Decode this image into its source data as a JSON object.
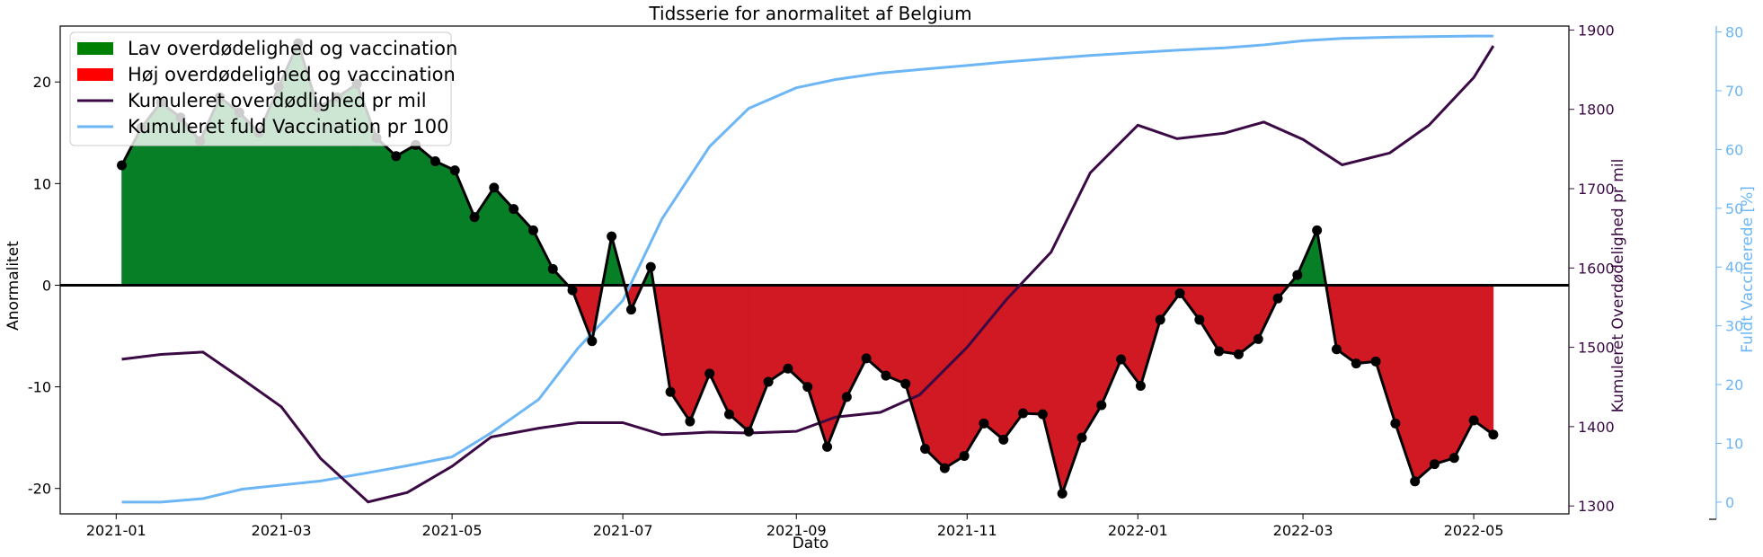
{
  "chart_data": {
    "type": "line",
    "title": "Tidsserie for anormalitet af Belgium",
    "xlabel": "Dato",
    "ylabel": "Anormalitet",
    "y2label": "Kumuleret Overdødelighed pr mil",
    "y3label": "Fuldt Vaccinerede [%]",
    "ylim": [
      -22.5,
      25.5
    ],
    "y2lim": [
      1290,
      1905
    ],
    "y3lim": [
      -2,
      81
    ],
    "x_tick_labels": [
      "2021-01",
      "2021-03",
      "2021-05",
      "2021-07",
      "2021-09",
      "2021-11",
      "2022-01",
      "2022-03",
      "2022-05"
    ],
    "y_ticks": [
      -20,
      -10,
      0,
      10,
      20
    ],
    "y2_ticks": [
      1300,
      1400,
      1500,
      1600,
      1700,
      1800,
      1900
    ],
    "y3_ticks": [
      0,
      10,
      20,
      30,
      40,
      50,
      60,
      70,
      80
    ],
    "legend_position": "top-left",
    "legend": [
      {
        "label": "Lav overdødelighed og vaccination",
        "type": "patch",
        "color": "#008000"
      },
      {
        "label": "Høj overdødelighed og vaccination",
        "type": "patch",
        "color": "#ff0000"
      },
      {
        "label": "Kumuleret overdødlighed pr mil",
        "type": "line",
        "color": "#3b0a45"
      },
      {
        "label": "Kumuleret fuld Vaccination pr 100",
        "type": "line",
        "color": "#6db6f5"
      }
    ],
    "colors": {
      "positive_fill": "#077f26",
      "negative_fill": "#d11923",
      "anomaly_line": "#000000",
      "mortality_line": "#3b0a45",
      "vaccination_line": "#6db6f5",
      "zero_line": "#000000"
    },
    "series": [
      {
        "name": "Anormalitet",
        "axis": "left",
        "x": [
          "2021-01-03",
          "2021-01-10",
          "2021-01-17",
          "2021-01-24",
          "2021-01-31",
          "2021-02-07",
          "2021-02-14",
          "2021-02-21",
          "2021-02-28",
          "2021-03-07",
          "2021-03-14",
          "2021-03-21",
          "2021-03-28",
          "2021-04-04",
          "2021-04-11",
          "2021-04-18",
          "2021-04-25",
          "2021-05-02",
          "2021-05-09",
          "2021-05-16",
          "2021-05-23",
          "2021-05-30",
          "2021-06-06",
          "2021-06-13",
          "2021-06-20",
          "2021-06-27",
          "2021-07-04",
          "2021-07-11",
          "2021-07-18",
          "2021-07-25",
          "2021-08-01",
          "2021-08-08",
          "2021-08-15",
          "2021-08-22",
          "2021-08-29",
          "2021-09-05",
          "2021-09-12",
          "2021-09-19",
          "2021-09-26",
          "2021-10-03",
          "2021-10-10",
          "2021-10-17",
          "2021-10-24",
          "2021-10-31",
          "2021-11-07",
          "2021-11-14",
          "2021-11-21",
          "2021-11-28",
          "2021-12-05",
          "2021-12-12",
          "2021-12-19",
          "2021-12-26",
          "2022-01-02",
          "2022-01-09",
          "2022-01-16",
          "2022-01-23",
          "2022-01-30",
          "2022-02-06",
          "2022-02-13",
          "2022-02-20",
          "2022-02-27",
          "2022-03-06",
          "2022-03-13",
          "2022-03-20",
          "2022-03-27",
          "2022-04-03",
          "2022-04-10",
          "2022-04-17",
          "2022-04-24",
          "2022-05-01",
          "2022-05-08"
        ],
        "values": [
          11.8,
          15.5,
          18.0,
          16.5,
          14.2,
          18.5,
          17.0,
          15.0,
          19.5,
          23.8,
          17.5,
          18.5,
          19.8,
          14.5,
          12.7,
          13.8,
          12.2,
          11.3,
          6.7,
          9.6,
          7.5,
          5.4,
          1.6,
          -0.5,
          -5.5,
          4.8,
          -2.4,
          1.8,
          -10.5,
          -13.4,
          -8.7,
          -12.7,
          -14.4,
          -9.5,
          -8.2,
          -10.0,
          -15.9,
          -11.0,
          -7.2,
          -8.9,
          -9.7,
          -16.1,
          -18.0,
          -16.8,
          -13.6,
          -15.2,
          -12.6,
          -12.7,
          -20.5,
          -15.0,
          -11.8,
          -7.3,
          -9.9,
          -3.4,
          -0.8,
          -3.4,
          -6.5,
          -6.8,
          -5.3,
          -1.3,
          1.0,
          5.4,
          -6.3,
          -7.7,
          -7.5,
          -13.6,
          -19.3,
          -17.6,
          -17.0,
          -13.3,
          -14.7
        ]
      },
      {
        "name": "Kumuleret overdødlighed pr mil",
        "axis": "right",
        "x": [
          "2021-01-03",
          "2021-01-17",
          "2021-02-01",
          "2021-02-15",
          "2021-03-01",
          "2021-03-15",
          "2021-04-01",
          "2021-04-15",
          "2021-05-01",
          "2021-05-15",
          "2021-06-01",
          "2021-06-15",
          "2021-07-01",
          "2021-07-15",
          "2021-08-01",
          "2021-08-15",
          "2021-09-01",
          "2021-09-15",
          "2021-10-01",
          "2021-10-15",
          "2021-11-01",
          "2021-11-15",
          "2021-12-01",
          "2021-12-15",
          "2022-01-01",
          "2022-01-15",
          "2022-02-01",
          "2022-02-15",
          "2022-03-01",
          "2022-03-15",
          "2022-04-01",
          "2022-04-15",
          "2022-05-01",
          "2022-05-08"
        ],
        "values": [
          1485,
          1491,
          1494,
          1460,
          1425,
          1360,
          1305,
          1317,
          1350,
          1387,
          1398,
          1405,
          1405,
          1390,
          1393,
          1392,
          1394,
          1412,
          1418,
          1440,
          1500,
          1560,
          1620,
          1720,
          1780,
          1763,
          1770,
          1784,
          1762,
          1730,
          1745,
          1780,
          1840,
          1880
        ]
      },
      {
        "name": "Kumuleret fuld Vaccination pr 100",
        "axis": "right2",
        "x": [
          "2021-01-03",
          "2021-01-17",
          "2021-02-01",
          "2021-02-15",
          "2021-03-01",
          "2021-03-15",
          "2021-04-01",
          "2021-04-15",
          "2021-05-01",
          "2021-05-15",
          "2021-06-01",
          "2021-06-15",
          "2021-07-01",
          "2021-07-15",
          "2021-08-01",
          "2021-08-15",
          "2021-09-01",
          "2021-09-15",
          "2021-10-01",
          "2021-10-15",
          "2021-11-01",
          "2021-11-15",
          "2021-12-01",
          "2021-12-15",
          "2022-01-01",
          "2022-01-15",
          "2022-02-01",
          "2022-02-15",
          "2022-03-01",
          "2022-03-15",
          "2022-04-01",
          "2022-04-15",
          "2022-05-01",
          "2022-05-08"
        ],
        "values": [
          0.0,
          0.0,
          0.6,
          2.2,
          2.9,
          3.6,
          5.0,
          6.2,
          7.7,
          11.8,
          17.5,
          26.2,
          34.3,
          48.2,
          60.5,
          67.0,
          70.5,
          71.9,
          73.0,
          73.6,
          74.3,
          74.9,
          75.5,
          76.0,
          76.5,
          76.9,
          77.3,
          77.8,
          78.5,
          78.9,
          79.1,
          79.2,
          79.3,
          79.3
        ]
      }
    ]
  }
}
